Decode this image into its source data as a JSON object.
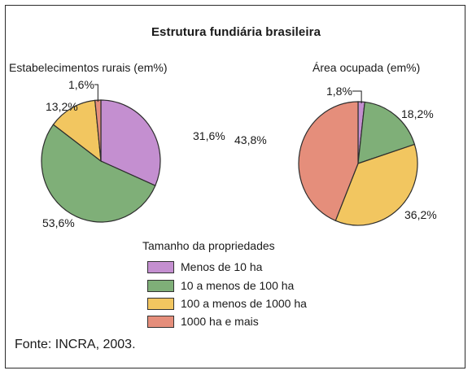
{
  "title": "Estrutura fundiária brasileira",
  "source": "Fonte: INCRA, 2003.",
  "colors": {
    "purple": "#c48fd0",
    "green": "#7faf78",
    "yellow": "#f2c660",
    "salmon": "#e58e7b",
    "stroke": "#2d2d2d"
  },
  "chart_data": [
    {
      "type": "pie",
      "title": "Estabelecimentos rurais (em%)",
      "categories": [
        "Menos de 10 ha",
        "10 a menos de 100 ha",
        "100 a menos de 1000 ha",
        "1000 ha e mais"
      ],
      "values": [
        31.6,
        53.6,
        13.2,
        1.6
      ],
      "labels": [
        "31,6%",
        "53,6%",
        "13,2%",
        "1,6%"
      ]
    },
    {
      "type": "pie",
      "title": "Área ocupada (em%)",
      "categories": [
        "Menos de 10 ha",
        "10 a menos de 100 ha",
        "100 a menos de 1000 ha",
        "1000 ha e mais"
      ],
      "values": [
        1.8,
        18.2,
        36.2,
        43.8
      ],
      "labels": [
        "1,8%",
        "18,2%",
        "36,2%",
        "43,8%"
      ]
    }
  ],
  "legend": {
    "title": "Tamanho da propriedades",
    "items": [
      {
        "label": "Menos de 10 ha",
        "color": "#c48fd0"
      },
      {
        "label": "10 a menos de 100 ha",
        "color": "#7faf78"
      },
      {
        "label": "100 a menos de 1000 ha",
        "color": "#f2c660"
      },
      {
        "label": "1000 ha e mais",
        "color": "#e58e7b"
      }
    ]
  }
}
